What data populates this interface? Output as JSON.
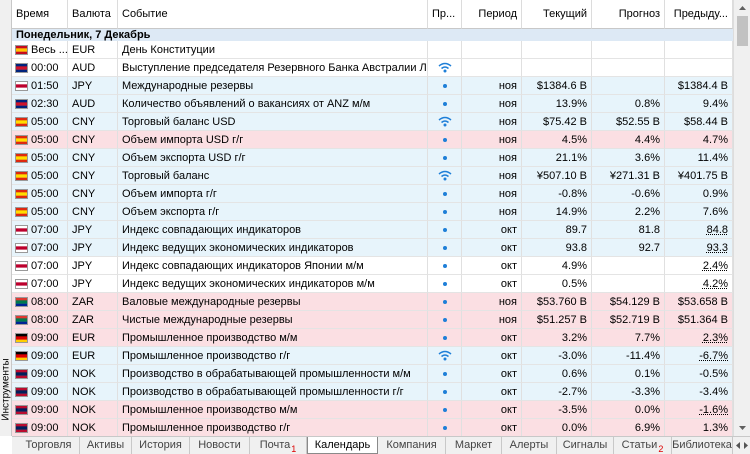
{
  "side_panel": {
    "title": "Инструменты"
  },
  "header": {
    "columns": [
      "Время",
      "Валюта",
      "Событие",
      "Пр...",
      "Период",
      "Текущий",
      "Прогноз",
      "Предыду..."
    ]
  },
  "date_row": "Понедельник, 7 Декабрь",
  "colors": {
    "white": "#ffffff",
    "blue": "#e7f4fb",
    "pink": "#fbdfe3",
    "icon": "#1e7fd8"
  },
  "rows": [
    {
      "time": "Весь ...",
      "currency": "EUR",
      "event": "День Конституции",
      "icon": null,
      "bg": "white",
      "flag": [
        "#c60b1e",
        "#ffc400",
        "#c60b1e"
      ]
    },
    {
      "time": "00:00",
      "currency": "AUD",
      "event": "Выступление председателя Резервного Банка Австралии Лоу",
      "icon": "wave",
      "bg": "white",
      "flag": [
        "#00247d",
        "#cf142b",
        "#00247d"
      ]
    },
    {
      "time": "01:50",
      "currency": "JPY",
      "event": "Международные резервы",
      "icon": "dot",
      "period": "ноя",
      "actual": "$1384.6 B",
      "forecast": null,
      "previous": "$1384.4 B",
      "bg": "blue",
      "flag": [
        "#ffffff",
        "#bc002d",
        "#ffffff"
      ]
    },
    {
      "time": "02:30",
      "currency": "AUD",
      "event": "Количество объявлений о вакансиях от ANZ м/м",
      "icon": "dot",
      "period": "ноя",
      "actual": "13.9%",
      "forecast": "0.8%",
      "previous": "9.4%",
      "bg": "blue",
      "flag": [
        "#00247d",
        "#cf142b",
        "#00247d"
      ]
    },
    {
      "time": "05:00",
      "currency": "CNY",
      "event": "Торговый баланс USD",
      "icon": "wave",
      "period": "ноя",
      "actual": "$75.42 B",
      "forecast": "$52.55 B",
      "previous": "$58.44 B",
      "bg": "blue",
      "flag": [
        "#de2910",
        "#ffde00",
        "#de2910"
      ]
    },
    {
      "time": "05:00",
      "currency": "CNY",
      "event": "Объем импорта USD г/г",
      "icon": "dot",
      "period": "ноя",
      "actual": "4.5%",
      "forecast": "4.4%",
      "previous": "4.7%",
      "bg": "pink",
      "flag": [
        "#de2910",
        "#ffde00",
        "#de2910"
      ]
    },
    {
      "time": "05:00",
      "currency": "CNY",
      "event": "Объем экспорта USD г/г",
      "icon": "dot",
      "period": "ноя",
      "actual": "21.1%",
      "forecast": "3.6%",
      "previous": "11.4%",
      "bg": "blue",
      "flag": [
        "#de2910",
        "#ffde00",
        "#de2910"
      ]
    },
    {
      "time": "05:00",
      "currency": "CNY",
      "event": "Торговый баланс",
      "icon": "wave",
      "period": "ноя",
      "actual": "¥507.10 B",
      "forecast": "¥271.31 B",
      "previous": "¥401.75 B",
      "bg": "blue",
      "flag": [
        "#de2910",
        "#ffde00",
        "#de2910"
      ]
    },
    {
      "time": "05:00",
      "currency": "CNY",
      "event": "Объем импорта г/г",
      "icon": "dot",
      "period": "ноя",
      "actual": "-0.8%",
      "forecast": "-0.6%",
      "previous": "0.9%",
      "bg": "blue",
      "flag": [
        "#de2910",
        "#ffde00",
        "#de2910"
      ]
    },
    {
      "time": "05:00",
      "currency": "CNY",
      "event": "Объем экспорта г/г",
      "icon": "dot",
      "period": "ноя",
      "actual": "14.9%",
      "forecast": "2.2%",
      "previous": "7.6%",
      "bg": "blue",
      "flag": [
        "#de2910",
        "#ffde00",
        "#de2910"
      ]
    },
    {
      "time": "07:00",
      "currency": "JPY",
      "event": "Индекс совпадающих индикаторов",
      "icon": "dot",
      "period": "окт",
      "actual": "89.7",
      "forecast": "81.8",
      "previous": "84.8",
      "revised": true,
      "bg": "blue",
      "flag": [
        "#ffffff",
        "#bc002d",
        "#ffffff"
      ]
    },
    {
      "time": "07:00",
      "currency": "JPY",
      "event": "Индекс ведущих экономических индикаторов",
      "icon": "dot",
      "period": "окт",
      "actual": "93.8",
      "forecast": "92.7",
      "previous": "93.3",
      "revised": true,
      "bg": "blue",
      "flag": [
        "#ffffff",
        "#bc002d",
        "#ffffff"
      ]
    },
    {
      "time": "07:00",
      "currency": "JPY",
      "event": "Индекс совпадающих индикаторов Японии м/м",
      "icon": "dot",
      "period": "окт",
      "actual": "4.9%",
      "forecast": null,
      "previous": "2.4%",
      "revised": true,
      "bg": "white",
      "flag": [
        "#ffffff",
        "#bc002d",
        "#ffffff"
      ]
    },
    {
      "time": "07:00",
      "currency": "JPY",
      "event": "Индекс ведущих экономических индикаторов м/м",
      "icon": "dot",
      "period": "окт",
      "actual": "0.5%",
      "forecast": null,
      "previous": "4.2%",
      "revised": true,
      "bg": "white",
      "flag": [
        "#ffffff",
        "#bc002d",
        "#ffffff"
      ]
    },
    {
      "time": "08:00",
      "currency": "ZAR",
      "event": "Валовые международные резервы",
      "icon": "dot",
      "period": "ноя",
      "actual": "$53.760 B",
      "forecast": "$54.129 B",
      "previous": "$53.658 B",
      "bg": "pink",
      "flag": [
        "#de3831",
        "#007a4d",
        "#002395"
      ]
    },
    {
      "time": "08:00",
      "currency": "ZAR",
      "event": "Чистые международные резервы",
      "icon": "dot",
      "period": "ноя",
      "actual": "$51.257 B",
      "forecast": "$52.719 B",
      "previous": "$51.364 B",
      "bg": "pink",
      "flag": [
        "#de3831",
        "#007a4d",
        "#002395"
      ]
    },
    {
      "time": "09:00",
      "currency": "EUR",
      "event": "Промышленное производство м/м",
      "icon": "dot",
      "period": "окт",
      "actual": "3.2%",
      "forecast": "7.7%",
      "previous": "2.3%",
      "revised": true,
      "bg": "pink",
      "flag": [
        "#000000",
        "#dd0000",
        "#ffce00"
      ]
    },
    {
      "time": "09:00",
      "currency": "EUR",
      "event": "Промышленное производство г/г",
      "icon": "wave",
      "period": "окт",
      "actual": "-3.0%",
      "forecast": "-11.4%",
      "previous": "-6.7%",
      "revised": true,
      "bg": "blue",
      "flag": [
        "#000000",
        "#dd0000",
        "#ffce00"
      ]
    },
    {
      "time": "09:00",
      "currency": "NOK",
      "event": "Производство в обрабатывающей промышленности м/м",
      "icon": "dot",
      "period": "окт",
      "actual": "0.6%",
      "forecast": "0.1%",
      "previous": "-0.5%",
      "bg": "blue",
      "flag": [
        "#ba0c2f",
        "#00205b",
        "#ba0c2f"
      ]
    },
    {
      "time": "09:00",
      "currency": "NOK",
      "event": "Производство в обрабатывающей промышленности г/г",
      "icon": "dot",
      "period": "окт",
      "actual": "-2.7%",
      "forecast": "-3.3%",
      "previous": "-3.4%",
      "bg": "blue",
      "flag": [
        "#ba0c2f",
        "#00205b",
        "#ba0c2f"
      ]
    },
    {
      "time": "09:00",
      "currency": "NOK",
      "event": "Промышленное производство м/м",
      "icon": "dot",
      "period": "окт",
      "actual": "-3.5%",
      "forecast": "0.0%",
      "previous": "-1.6%",
      "revised": true,
      "bg": "pink",
      "flag": [
        "#ba0c2f",
        "#00205b",
        "#ba0c2f"
      ]
    },
    {
      "time": "09:00",
      "currency": "NOK",
      "event": "Промышленное производство г/г",
      "icon": "dot",
      "period": "окт",
      "actual": "0.0%",
      "forecast": "6.9%",
      "previous": "1.3%",
      "bg": "pink",
      "flag": [
        "#ba0c2f",
        "#00205b",
        "#ba0c2f"
      ]
    }
  ],
  "tabs": [
    {
      "label": "Торговля"
    },
    {
      "label": "Активы"
    },
    {
      "label": "История"
    },
    {
      "label": "Новости"
    },
    {
      "label": "Почта",
      "badge": "1"
    },
    {
      "label": "Календарь",
      "active": true
    },
    {
      "label": "Компания"
    },
    {
      "label": "Маркет"
    },
    {
      "label": "Алерты"
    },
    {
      "label": "Сигналы"
    },
    {
      "label": "Статьи",
      "badge": "2"
    },
    {
      "label": "Библиотека"
    }
  ]
}
